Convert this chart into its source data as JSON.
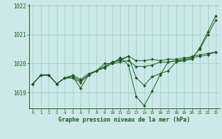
{
  "xlabel": "Graphe pression niveau de la mer (hPa)",
  "bg_color": "#cce8e8",
  "grid_color": "#99cccc",
  "line_color": "#1a5c1a",
  "marker_color": "#1a5c1a",
  "hours": [
    0,
    1,
    2,
    3,
    4,
    5,
    6,
    7,
    8,
    9,
    10,
    11,
    12,
    13,
    14,
    15,
    16,
    17,
    18,
    19,
    20,
    21,
    22,
    23
  ],
  "series": [
    [
      1019.3,
      1019.6,
      1019.6,
      1019.3,
      1019.5,
      1019.6,
      1019.45,
      1019.65,
      1019.75,
      1019.85,
      1020.0,
      1020.05,
      1020.1,
      1019.9,
      1019.9,
      1019.95,
      1020.05,
      1020.05,
      1020.1,
      1020.15,
      1020.25,
      1020.3,
      1020.35,
      1020.4
    ],
    [
      1019.3,
      1019.6,
      1019.6,
      1019.3,
      1019.5,
      1019.55,
      1019.4,
      1019.6,
      1019.75,
      1019.9,
      1020.05,
      1020.15,
      1020.25,
      1020.1,
      1020.1,
      1020.15,
      1020.1,
      1020.15,
      1020.15,
      1020.2,
      1020.2,
      1020.25,
      1020.3,
      1020.4
    ],
    [
      1019.3,
      1019.6,
      1019.6,
      1019.3,
      1019.5,
      1019.5,
      1019.35,
      1019.6,
      1019.75,
      1019.9,
      1020.05,
      1020.1,
      1020.25,
      1019.5,
      1019.25,
      1019.55,
      1019.65,
      1019.75,
      1020.05,
      1020.1,
      1020.2,
      1020.5,
      1021.0,
      1021.5
    ],
    [
      1019.3,
      1019.6,
      1019.6,
      1019.3,
      1019.5,
      1019.55,
      1019.15,
      1019.6,
      1019.75,
      1020.0,
      1020.0,
      1020.2,
      1019.95,
      1018.85,
      1018.55,
      1019.05,
      1019.6,
      1020.05,
      1020.1,
      1020.1,
      1020.15,
      1020.55,
      1021.1,
      1021.65
    ]
  ],
  "ylim": [
    1018.45,
    1022.05
  ],
  "yticks": [
    1019,
    1020,
    1021,
    1022
  ],
  "xticks": [
    0,
    1,
    2,
    3,
    4,
    5,
    6,
    7,
    8,
    9,
    10,
    11,
    12,
    13,
    14,
    15,
    16,
    17,
    18,
    19,
    20,
    21,
    22,
    23
  ],
  "figsize": [
    3.2,
    2.0
  ],
  "dpi": 100
}
